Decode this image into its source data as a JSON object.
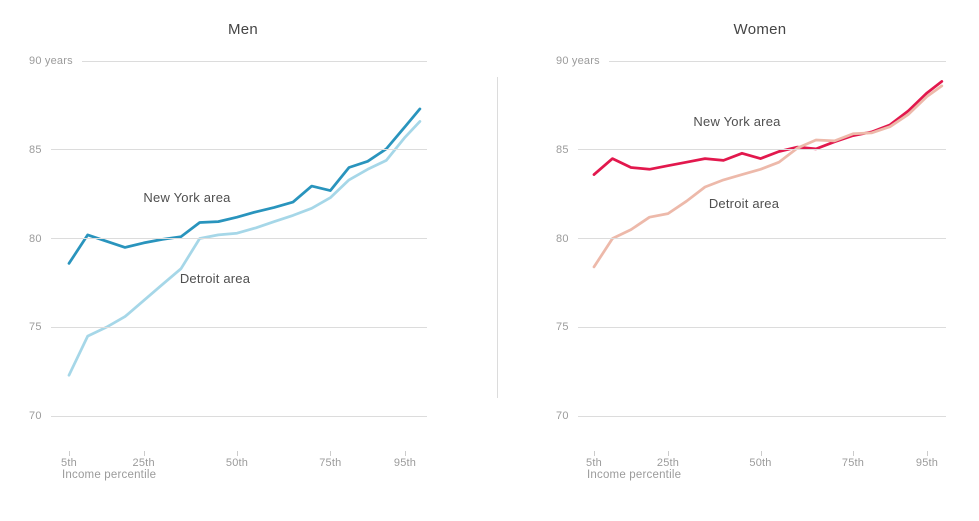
{
  "chart_data": [
    {
      "type": "line",
      "title": "Men",
      "xlabel": "Income percentile",
      "x": [
        5,
        10,
        15,
        20,
        25,
        30,
        35,
        40,
        45,
        50,
        55,
        60,
        65,
        70,
        75,
        80,
        85,
        90,
        95,
        99
      ],
      "x_ticks": [
        5,
        25,
        50,
        75,
        95
      ],
      "x_tick_labels": [
        "5th",
        "25th",
        "50th",
        "75th",
        "95th"
      ],
      "y_ticks": [
        90,
        85,
        80,
        75,
        70
      ],
      "y_tick_labels": [
        "90 years",
        "85",
        "80",
        "75",
        "70"
      ],
      "ylim": [
        68.5,
        91
      ],
      "grid": "horizontal",
      "legend_position": "inline-annotations",
      "unit": "years of life expectancy",
      "series": [
        {
          "name": "New York area",
          "color": "#2994bd",
          "values": [
            78.6,
            80.2,
            79.85,
            79.5,
            79.75,
            79.95,
            80.1,
            80.9,
            80.95,
            81.2,
            81.5,
            81.75,
            82.05,
            82.95,
            82.7,
            84.0,
            84.35,
            85.05,
            86.3,
            87.3
          ]
        },
        {
          "name": "Detroit area",
          "color": "#a6d7e8",
          "values": [
            72.3,
            74.5,
            75.0,
            75.6,
            76.5,
            77.4,
            78.3,
            80.0,
            80.2,
            80.3,
            80.6,
            80.95,
            81.3,
            81.7,
            82.3,
            83.3,
            83.9,
            84.4,
            85.7,
            86.6
          ]
        }
      ]
    },
    {
      "type": "line",
      "title": "Women",
      "xlabel": "Income percentile",
      "x": [
        5,
        10,
        15,
        20,
        25,
        30,
        35,
        40,
        45,
        50,
        55,
        60,
        65,
        70,
        75,
        80,
        85,
        90,
        95,
        99
      ],
      "x_ticks": [
        5,
        25,
        50,
        75,
        95
      ],
      "x_tick_labels": [
        "5th",
        "25th",
        "50th",
        "75th",
        "95th"
      ],
      "y_ticks": [
        90,
        85,
        80,
        75,
        70
      ],
      "y_tick_labels": [
        "90 years",
        "85",
        "80",
        "75",
        "70"
      ],
      "ylim": [
        68.5,
        91
      ],
      "grid": "horizontal",
      "legend_position": "inline-annotations",
      "unit": "years of life expectancy",
      "series": [
        {
          "name": "New York area",
          "color": "#e2184d",
          "values": [
            83.6,
            84.5,
            84.0,
            83.9,
            84.1,
            84.3,
            84.5,
            84.4,
            84.8,
            84.5,
            84.9,
            85.15,
            85.05,
            85.45,
            85.8,
            86.0,
            86.4,
            87.2,
            88.2,
            88.85
          ]
        },
        {
          "name": "Detroit area",
          "color": "#edb9aa",
          "values": [
            78.4,
            80.0,
            80.5,
            81.2,
            81.4,
            82.1,
            82.9,
            83.3,
            83.6,
            83.9,
            84.3,
            85.1,
            85.55,
            85.5,
            85.9,
            85.95,
            86.3,
            87.0,
            88.0,
            88.6
          ]
        }
      ]
    }
  ],
  "colors": {
    "gridline": "#dcdcdc",
    "tick": "#cccccc",
    "divider": "#dcdcdc",
    "title_text": "#454545",
    "axis_text": "#9b9b9b",
    "annotation_text": "#4f4f4f"
  }
}
